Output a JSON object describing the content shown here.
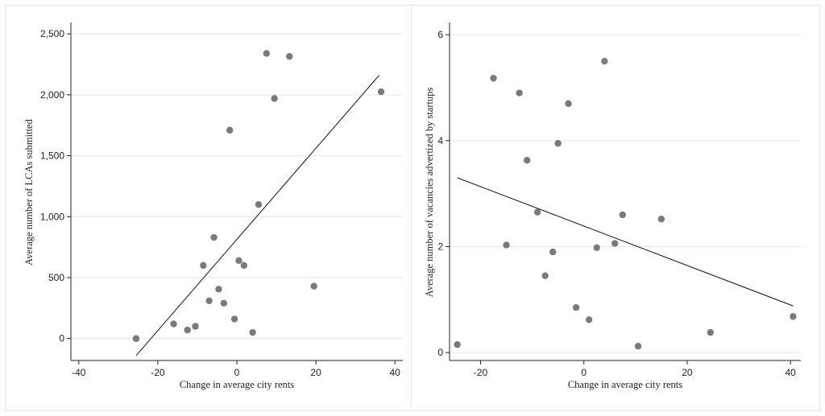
{
  "chart_data": [
    {
      "type": "scatter",
      "title": "",
      "xlabel": "Change in average city rents",
      "ylabel": "Average number of LCAs submitted",
      "xlim": [
        -42,
        42
      ],
      "ylim": [
        -180,
        2580
      ],
      "xticks": [
        -40,
        -20,
        0,
        20,
        40
      ],
      "xtick_labels": [
        "-40",
        "-20",
        "0",
        "20",
        "40"
      ],
      "yticks": [
        0,
        500,
        1000,
        1500,
        2000,
        2500
      ],
      "ytick_labels": [
        "0",
        "500",
        "1,000",
        "1,500",
        "2,000",
        "2,500"
      ],
      "grid": "horizontal",
      "point_color": "#7a7a7a",
      "line_color": "#222222",
      "points": [
        {
          "x": -25.5,
          "y": 0
        },
        {
          "x": -16,
          "y": 120
        },
        {
          "x": -12.5,
          "y": 70
        },
        {
          "x": -10.5,
          "y": 100
        },
        {
          "x": -8.5,
          "y": 600
        },
        {
          "x": -7,
          "y": 310
        },
        {
          "x": -5.8,
          "y": 830
        },
        {
          "x": -4.6,
          "y": 405
        },
        {
          "x": -3.3,
          "y": 290
        },
        {
          "x": -1.8,
          "y": 1710
        },
        {
          "x": -0.6,
          "y": 160
        },
        {
          "x": 0.5,
          "y": 640
        },
        {
          "x": 1.8,
          "y": 600
        },
        {
          "x": 4,
          "y": 50
        },
        {
          "x": 5.5,
          "y": 1100
        },
        {
          "x": 7.5,
          "y": 2340
        },
        {
          "x": 9.5,
          "y": 1970
        },
        {
          "x": 13.3,
          "y": 2315
        },
        {
          "x": 19.5,
          "y": 430
        },
        {
          "x": 36.5,
          "y": 2025
        }
      ],
      "fit_line": {
        "x": [
          -25.5,
          36
        ],
        "y": [
          -140,
          2160
        ]
      }
    },
    {
      "type": "scatter",
      "title": "",
      "xlabel": "Change in average city rents",
      "ylabel": "Average number of vacancies advertized by startups",
      "xlim": [
        -26,
        42
      ],
      "ylim": [
        -0.15,
        6.2
      ],
      "xticks": [
        -20,
        0,
        20,
        40
      ],
      "xtick_labels": [
        "-20",
        "0",
        "20",
        "40"
      ],
      "yticks": [
        0,
        2,
        4,
        6
      ],
      "ytick_labels": [
        "0",
        "2",
        "4",
        "6"
      ],
      "grid": "horizontal",
      "point_color": "#7a7a7a",
      "line_color": "#222222",
      "points": [
        {
          "x": -24.5,
          "y": 0.15
        },
        {
          "x": -17.5,
          "y": 5.18
        },
        {
          "x": -15,
          "y": 2.03
        },
        {
          "x": -12.5,
          "y": 4.9
        },
        {
          "x": -11,
          "y": 3.63
        },
        {
          "x": -9,
          "y": 2.65
        },
        {
          "x": -7.5,
          "y": 1.45
        },
        {
          "x": -6,
          "y": 1.9
        },
        {
          "x": -5,
          "y": 3.95
        },
        {
          "x": -3,
          "y": 4.7
        },
        {
          "x": -1.5,
          "y": 0.85
        },
        {
          "x": 1,
          "y": 0.62
        },
        {
          "x": 2.5,
          "y": 1.98
        },
        {
          "x": 4,
          "y": 5.5
        },
        {
          "x": 6,
          "y": 2.06
        },
        {
          "x": 7.5,
          "y": 2.6
        },
        {
          "x": 10.5,
          "y": 0.12
        },
        {
          "x": 15,
          "y": 2.52
        },
        {
          "x": 24.5,
          "y": 0.38
        },
        {
          "x": 40.5,
          "y": 0.68
        }
      ],
      "fit_line": {
        "x": [
          -24.5,
          40.5
        ],
        "y": [
          3.3,
          0.88
        ]
      }
    }
  ]
}
